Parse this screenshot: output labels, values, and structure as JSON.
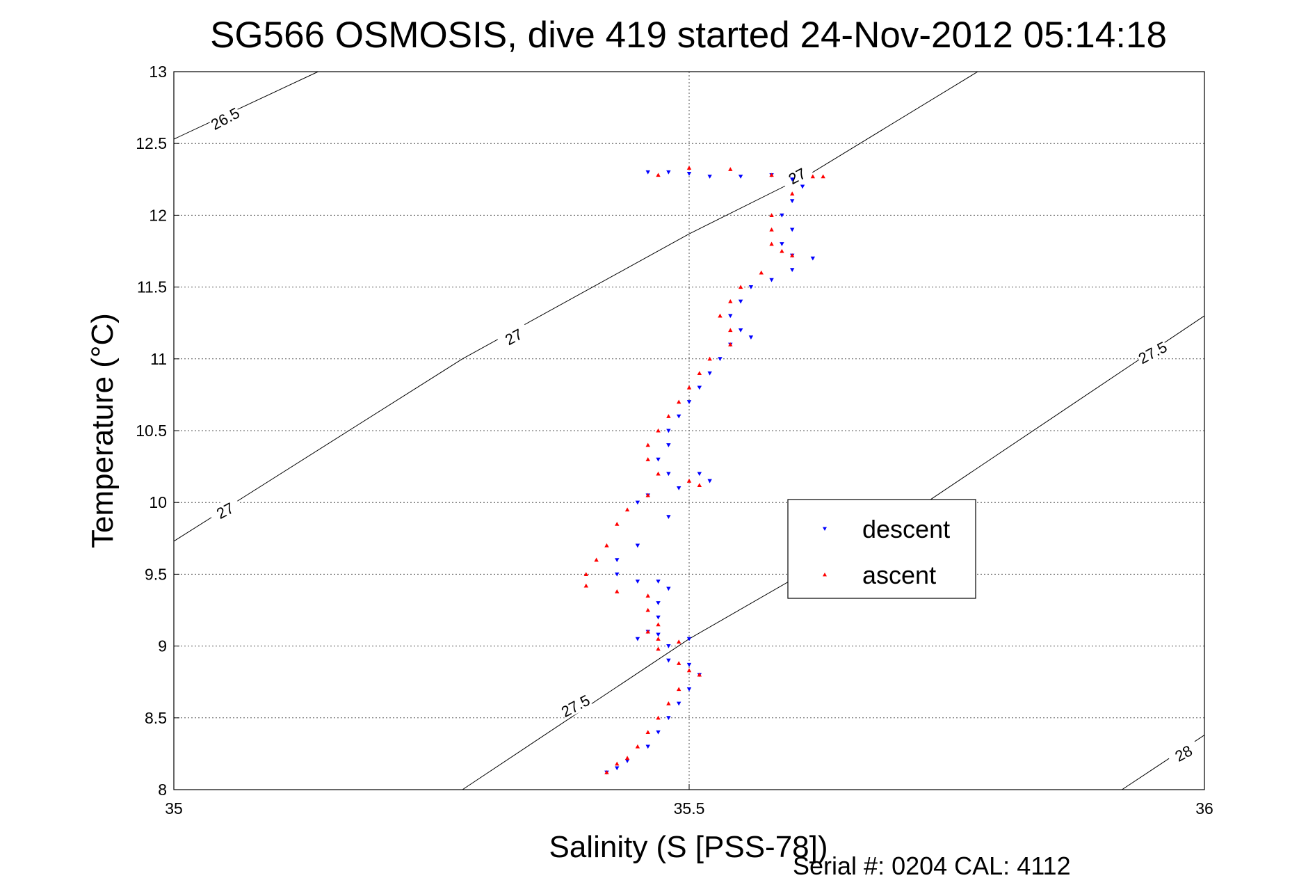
{
  "chart_data": {
    "type": "scatter",
    "title": "SG566 OSMOSIS, dive 419 started 24-Nov-2012 05:14:18",
    "xlabel": "Salinity (S [PSS-78])",
    "ylabel": "Temperature (°C)",
    "xlim": [
      35,
      36
    ],
    "ylim": [
      8,
      13
    ],
    "xticks": [
      "35",
      "35.5",
      "36"
    ],
    "yticks": [
      "8",
      "8.5",
      "9",
      "9.5",
      "10",
      "10.5",
      "11",
      "11.5",
      "12",
      "12.5",
      "13"
    ],
    "grid": true,
    "legend_position": "center-right",
    "footer": "Serial #: 0204  CAL: 4112",
    "density_contours": [
      {
        "label": "26.5",
        "points": [
          [
            35.0,
            12.53
          ],
          [
            35.14,
            13.0
          ]
        ]
      },
      {
        "label": "27",
        "points": [
          [
            35.0,
            9.73
          ],
          [
            35.28,
            11.0
          ],
          [
            35.5,
            11.87
          ],
          [
            35.62,
            12.3
          ],
          [
            35.78,
            13.0
          ]
        ]
      },
      {
        "label": "27.5",
        "points": [
          [
            35.28,
            8.0
          ],
          [
            35.5,
            9.05
          ],
          [
            35.73,
            10.0
          ],
          [
            36.0,
            11.3
          ]
        ]
      },
      {
        "label": "28",
        "points": [
          [
            35.92,
            8.0
          ],
          [
            36.0,
            8.38
          ]
        ]
      }
    ],
    "contour_label_positions": [
      {
        "label": "26.5",
        "x": 35.05,
        "y": 12.67
      },
      {
        "label": "27",
        "x": 35.33,
        "y": 11.15
      },
      {
        "label": "27",
        "x": 35.05,
        "y": 9.94
      },
      {
        "label": "27",
        "x": 35.605,
        "y": 12.27
      },
      {
        "label": "27.5",
        "x": 35.95,
        "y": 11.04
      },
      {
        "label": "27.5",
        "x": 35.39,
        "y": 8.58
      },
      {
        "label": "28",
        "x": 35.98,
        "y": 8.25
      }
    ],
    "series": [
      {
        "name": "descent",
        "color": "#0000ff",
        "marker": "triangle-down",
        "points": [
          [
            35.46,
            12.3
          ],
          [
            35.48,
            12.3
          ],
          [
            35.5,
            12.29
          ],
          [
            35.52,
            12.27
          ],
          [
            35.55,
            12.27
          ],
          [
            35.58,
            12.28
          ],
          [
            35.6,
            12.25
          ],
          [
            35.61,
            12.2
          ],
          [
            35.6,
            12.1
          ],
          [
            35.59,
            12.0
          ],
          [
            35.6,
            11.9
          ],
          [
            35.59,
            11.8
          ],
          [
            35.6,
            11.72
          ],
          [
            35.62,
            11.7
          ],
          [
            35.6,
            11.62
          ],
          [
            35.58,
            11.55
          ],
          [
            35.56,
            11.5
          ],
          [
            35.55,
            11.4
          ],
          [
            35.54,
            11.3
          ],
          [
            35.55,
            11.2
          ],
          [
            35.56,
            11.15
          ],
          [
            35.54,
            11.1
          ],
          [
            35.53,
            11.0
          ],
          [
            35.52,
            10.9
          ],
          [
            35.51,
            10.8
          ],
          [
            35.5,
            10.7
          ],
          [
            35.49,
            10.6
          ],
          [
            35.48,
            10.5
          ],
          [
            35.48,
            10.4
          ],
          [
            35.47,
            10.3
          ],
          [
            35.48,
            10.2
          ],
          [
            35.51,
            10.2
          ],
          [
            35.52,
            10.15
          ],
          [
            35.49,
            10.1
          ],
          [
            35.46,
            10.05
          ],
          [
            35.45,
            10.0
          ],
          [
            35.48,
            9.9
          ],
          [
            35.45,
            9.7
          ],
          [
            35.43,
            9.6
          ],
          [
            35.43,
            9.5
          ],
          [
            35.45,
            9.45
          ],
          [
            35.47,
            9.45
          ],
          [
            35.48,
            9.4
          ],
          [
            35.47,
            9.3
          ],
          [
            35.47,
            9.2
          ],
          [
            35.46,
            9.1
          ],
          [
            35.45,
            9.05
          ],
          [
            35.47,
            9.08
          ],
          [
            35.5,
            9.05
          ],
          [
            35.48,
            9.0
          ],
          [
            35.48,
            8.9
          ],
          [
            35.5,
            8.87
          ],
          [
            35.51,
            8.8
          ],
          [
            35.5,
            8.7
          ],
          [
            35.49,
            8.6
          ],
          [
            35.48,
            8.5
          ],
          [
            35.47,
            8.4
          ],
          [
            35.46,
            8.3
          ],
          [
            35.44,
            8.2
          ],
          [
            35.43,
            8.15
          ],
          [
            35.42,
            8.12
          ]
        ]
      },
      {
        "name": "ascent",
        "color": "#ff0000",
        "marker": "triangle-up",
        "points": [
          [
            35.47,
            12.28
          ],
          [
            35.5,
            12.33
          ],
          [
            35.54,
            12.32
          ],
          [
            35.58,
            12.28
          ],
          [
            35.62,
            12.27
          ],
          [
            35.63,
            12.27
          ],
          [
            35.6,
            12.15
          ],
          [
            35.58,
            12.0
          ],
          [
            35.58,
            11.9
          ],
          [
            35.58,
            11.8
          ],
          [
            35.59,
            11.75
          ],
          [
            35.6,
            11.72
          ],
          [
            35.57,
            11.6
          ],
          [
            35.55,
            11.5
          ],
          [
            35.54,
            11.4
          ],
          [
            35.53,
            11.3
          ],
          [
            35.54,
            11.2
          ],
          [
            35.54,
            11.1
          ],
          [
            35.52,
            11.0
          ],
          [
            35.51,
            10.9
          ],
          [
            35.5,
            10.8
          ],
          [
            35.49,
            10.7
          ],
          [
            35.48,
            10.6
          ],
          [
            35.47,
            10.5
          ],
          [
            35.46,
            10.4
          ],
          [
            35.46,
            10.3
          ],
          [
            35.47,
            10.2
          ],
          [
            35.5,
            10.15
          ],
          [
            35.51,
            10.12
          ],
          [
            35.46,
            10.05
          ],
          [
            35.44,
            9.95
          ],
          [
            35.43,
            9.85
          ],
          [
            35.42,
            9.7
          ],
          [
            35.41,
            9.6
          ],
          [
            35.4,
            9.5
          ],
          [
            35.4,
            9.42
          ],
          [
            35.43,
            9.38
          ],
          [
            35.46,
            9.35
          ],
          [
            35.46,
            9.25
          ],
          [
            35.47,
            9.15
          ],
          [
            35.46,
            9.1
          ],
          [
            35.47,
            9.05
          ],
          [
            35.49,
            9.03
          ],
          [
            35.47,
            8.98
          ],
          [
            35.49,
            8.88
          ],
          [
            35.5,
            8.83
          ],
          [
            35.51,
            8.8
          ],
          [
            35.49,
            8.7
          ],
          [
            35.48,
            8.6
          ],
          [
            35.47,
            8.5
          ],
          [
            35.46,
            8.4
          ],
          [
            35.45,
            8.3
          ],
          [
            35.44,
            8.22
          ],
          [
            35.43,
            8.18
          ],
          [
            35.42,
            8.12
          ]
        ]
      }
    ]
  }
}
